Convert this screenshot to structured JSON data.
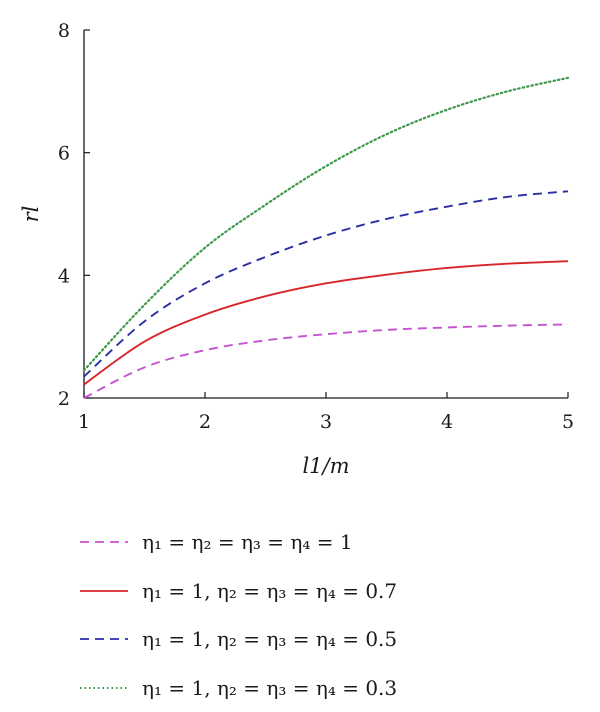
{
  "chart_data": {
    "type": "line",
    "title": "",
    "xlabel": "l1/m",
    "ylabel": "rl",
    "xlim": [
      1,
      5
    ],
    "ylim": [
      2,
      8
    ],
    "xticks": [
      "1",
      "2",
      "3",
      "4",
      "5"
    ],
    "yticks": [
      "2",
      "4",
      "6",
      "8"
    ],
    "grid": false,
    "legend_position": "bottom",
    "x": [
      1,
      1.5,
      2,
      2.5,
      3,
      3.5,
      4,
      4.5,
      5
    ],
    "series": [
      {
        "name": "η1 = η2 = η3 = η4 = 1",
        "color": "#c552d1",
        "style": "dashed",
        "values": [
          2.0,
          2.5,
          2.78,
          2.94,
          3.04,
          3.11,
          3.15,
          3.18,
          3.2
        ]
      },
      {
        "name": "η1 = 1, η2 = η3 = η4 = 0.7",
        "color": "#d6262a",
        "style": "solid",
        "values": [
          2.22,
          2.92,
          3.36,
          3.66,
          3.87,
          4.01,
          4.12,
          4.19,
          4.23
        ]
      },
      {
        "name": "η1 = 1, η2 = η3 = η4 = 0.5",
        "color": "#2b2ea3",
        "style": "dashed",
        "values": [
          2.35,
          3.25,
          3.87,
          4.3,
          4.65,
          4.92,
          5.12,
          5.28,
          5.37
        ]
      },
      {
        "name": "η1 = 1, η2 = η3 = η4 = 0.3",
        "color": "#3d9a4a",
        "style": "dotted",
        "values": [
          2.45,
          3.52,
          4.45,
          5.15,
          5.78,
          6.3,
          6.7,
          7.0,
          7.22
        ]
      }
    ]
  },
  "legend_display": [
    "η₁ = η₂ = η₃ = η₄ = 1",
    "η₁ = 1, η₂ = η₃ = η₄ = 0.7",
    "η₁ = 1, η₂ = η₃ = η₄ = 0.5",
    "η₁ = 1, η₂ = η₃ = η₄ = 0.3"
  ]
}
